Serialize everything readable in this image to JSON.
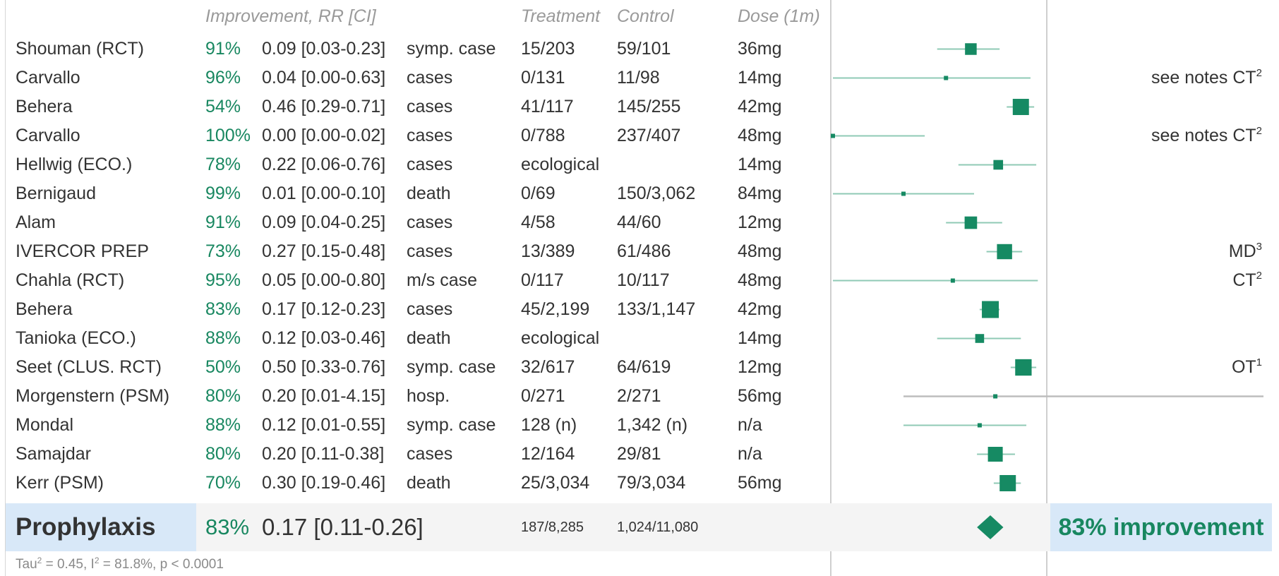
{
  "headers": {
    "improvement_rr": "Improvement, RR [CI]",
    "treatment": "Treatment",
    "control": "Control",
    "dose": "Dose (1m)"
  },
  "chart_data": {
    "type": "forest",
    "measure": "RR",
    "studies": [
      {
        "name": "Shouman (RCT)",
        "improvement": "91%",
        "rr": 0.09,
        "ci": [
          0.03,
          0.23
        ],
        "rr_text": "0.09 [0.03-0.23]",
        "outcome": "symp. case",
        "treatment": "15/203",
        "control": "59/101",
        "dose": "36mg",
        "note": "",
        "note_sup": "",
        "excluded": false
      },
      {
        "name": "Carvallo",
        "improvement": "96%",
        "rr": 0.04,
        "ci": [
          0.0,
          0.63
        ],
        "rr_text": "0.04 [0.00-0.63]",
        "outcome": "cases",
        "treatment": "0/131",
        "control": "11/98",
        "dose": "14mg",
        "note": "see notes CT",
        "note_sup": "2",
        "excluded": false
      },
      {
        "name": "Behera",
        "improvement": "54%",
        "rr": 0.46,
        "ci": [
          0.29,
          0.71
        ],
        "rr_text": "0.46 [0.29-0.71]",
        "outcome": "cases",
        "treatment": "41/117",
        "control": "145/255",
        "dose": "42mg",
        "note": "",
        "note_sup": "",
        "excluded": false
      },
      {
        "name": "Carvallo",
        "improvement": "100%",
        "rr": 0.0,
        "ci": [
          0.0,
          0.02
        ],
        "rr_text": "0.00 [0.00-0.02]",
        "outcome": "cases",
        "treatment": "0/788",
        "control": "237/407",
        "dose": "48mg",
        "note": "see notes CT",
        "note_sup": "2",
        "excluded": false
      },
      {
        "name": "Hellwig (ECO.)",
        "improvement": "78%",
        "rr": 0.22,
        "ci": [
          0.06,
          0.76
        ],
        "rr_text": "0.22 [0.06-0.76]",
        "outcome": "cases",
        "treatment": "ecological",
        "control": "",
        "dose": "14mg",
        "note": "",
        "note_sup": "",
        "excluded": false
      },
      {
        "name": "Bernigaud",
        "improvement": "99%",
        "rr": 0.01,
        "ci": [
          0.0,
          0.1
        ],
        "rr_text": "0.01 [0.00-0.10]",
        "outcome": "death",
        "treatment": "0/69",
        "control": "150/3,062",
        "dose": "84mg",
        "note": "",
        "note_sup": "",
        "excluded": false
      },
      {
        "name": "Alam",
        "improvement": "91%",
        "rr": 0.09,
        "ci": [
          0.04,
          0.25
        ],
        "rr_text": "0.09 [0.04-0.25]",
        "outcome": "cases",
        "treatment": "4/58",
        "control": "44/60",
        "dose": "12mg",
        "note": "",
        "note_sup": "",
        "excluded": false
      },
      {
        "name": "IVERCOR PREP",
        "improvement": "73%",
        "rr": 0.27,
        "ci": [
          0.15,
          0.48
        ],
        "rr_text": "0.27 [0.15-0.48]",
        "outcome": "cases",
        "treatment": "13/389",
        "control": "61/486",
        "dose": "48mg",
        "note": "MD",
        "note_sup": "3",
        "excluded": false
      },
      {
        "name": "Chahla (RCT)",
        "improvement": "95%",
        "rr": 0.05,
        "ci": [
          0.0,
          0.8
        ],
        "rr_text": "0.05 [0.00-0.80]",
        "outcome": "m/s case",
        "treatment": "0/117",
        "control": "10/117",
        "dose": "48mg",
        "note": "CT",
        "note_sup": "2",
        "excluded": false
      },
      {
        "name": "Behera",
        "improvement": "83%",
        "rr": 0.17,
        "ci": [
          0.12,
          0.23
        ],
        "rr_text": "0.17 [0.12-0.23]",
        "outcome": "cases",
        "treatment": "45/2,199",
        "control": "133/1,147",
        "dose": "42mg",
        "note": "",
        "note_sup": "",
        "excluded": false
      },
      {
        "name": "Tanioka (ECO.)",
        "improvement": "88%",
        "rr": 0.12,
        "ci": [
          0.03,
          0.46
        ],
        "rr_text": "0.12 [0.03-0.46]",
        "outcome": "death",
        "treatment": "ecological",
        "control": "",
        "dose": "14mg",
        "note": "",
        "note_sup": "",
        "excluded": false
      },
      {
        "name": "Seet (CLUS. RCT)",
        "improvement": "50%",
        "rr": 0.5,
        "ci": [
          0.33,
          0.76
        ],
        "rr_text": "0.50 [0.33-0.76]",
        "outcome": "symp. case",
        "treatment": "32/617",
        "control": "64/619",
        "dose": "12mg",
        "note": "OT",
        "note_sup": "1",
        "excluded": false
      },
      {
        "name": "Morgenstern (PSM)",
        "improvement": "80%",
        "rr": 0.2,
        "ci": [
          0.01,
          4.15
        ],
        "rr_text": "0.20 [0.01-4.15]",
        "outcome": "hosp.",
        "treatment": "0/271",
        "control": "2/271",
        "dose": "56mg",
        "note": "",
        "note_sup": "",
        "excluded": true
      },
      {
        "name": "Mondal",
        "improvement": "88%",
        "rr": 0.12,
        "ci": [
          0.01,
          0.55
        ],
        "rr_text": "0.12 [0.01-0.55]",
        "outcome": "symp. case",
        "treatment": "128 (n)",
        "control": "1,342 (n)",
        "dose": "n/a",
        "note": "",
        "note_sup": "",
        "excluded": false
      },
      {
        "name": "Samajdar",
        "improvement": "80%",
        "rr": 0.2,
        "ci": [
          0.11,
          0.38
        ],
        "rr_text": "0.20 [0.11-0.38]",
        "outcome": "cases",
        "treatment": "12/164",
        "control": "29/81",
        "dose": "n/a",
        "note": "",
        "note_sup": "",
        "excluded": false
      },
      {
        "name": "Kerr (PSM)",
        "improvement": "70%",
        "rr": 0.3,
        "ci": [
          0.19,
          0.46
        ],
        "rr_text": "0.30 [0.19-0.46]",
        "outcome": "death",
        "treatment": "25/3,034",
        "control": "79/3,034",
        "dose": "56mg",
        "note": "",
        "note_sup": "",
        "excluded": false
      }
    ],
    "pooled": {
      "label": "Prophylaxis",
      "improvement": "83%",
      "rr": 0.17,
      "ci": [
        0.11,
        0.26
      ],
      "rr_text": "0.17 [0.11-0.26]",
      "treatment": "187/8,285",
      "control": "1,024/11,080",
      "summary": "83% improvement"
    },
    "heterogeneity": {
      "tau2": "0.45",
      "i2": "81.8%",
      "p": "p < 0.0001"
    },
    "colors": {
      "marker": "#168a63",
      "ci_line": "#8fcab5",
      "excluded_line": "#bdbdbd",
      "accent": "#188760"
    }
  }
}
